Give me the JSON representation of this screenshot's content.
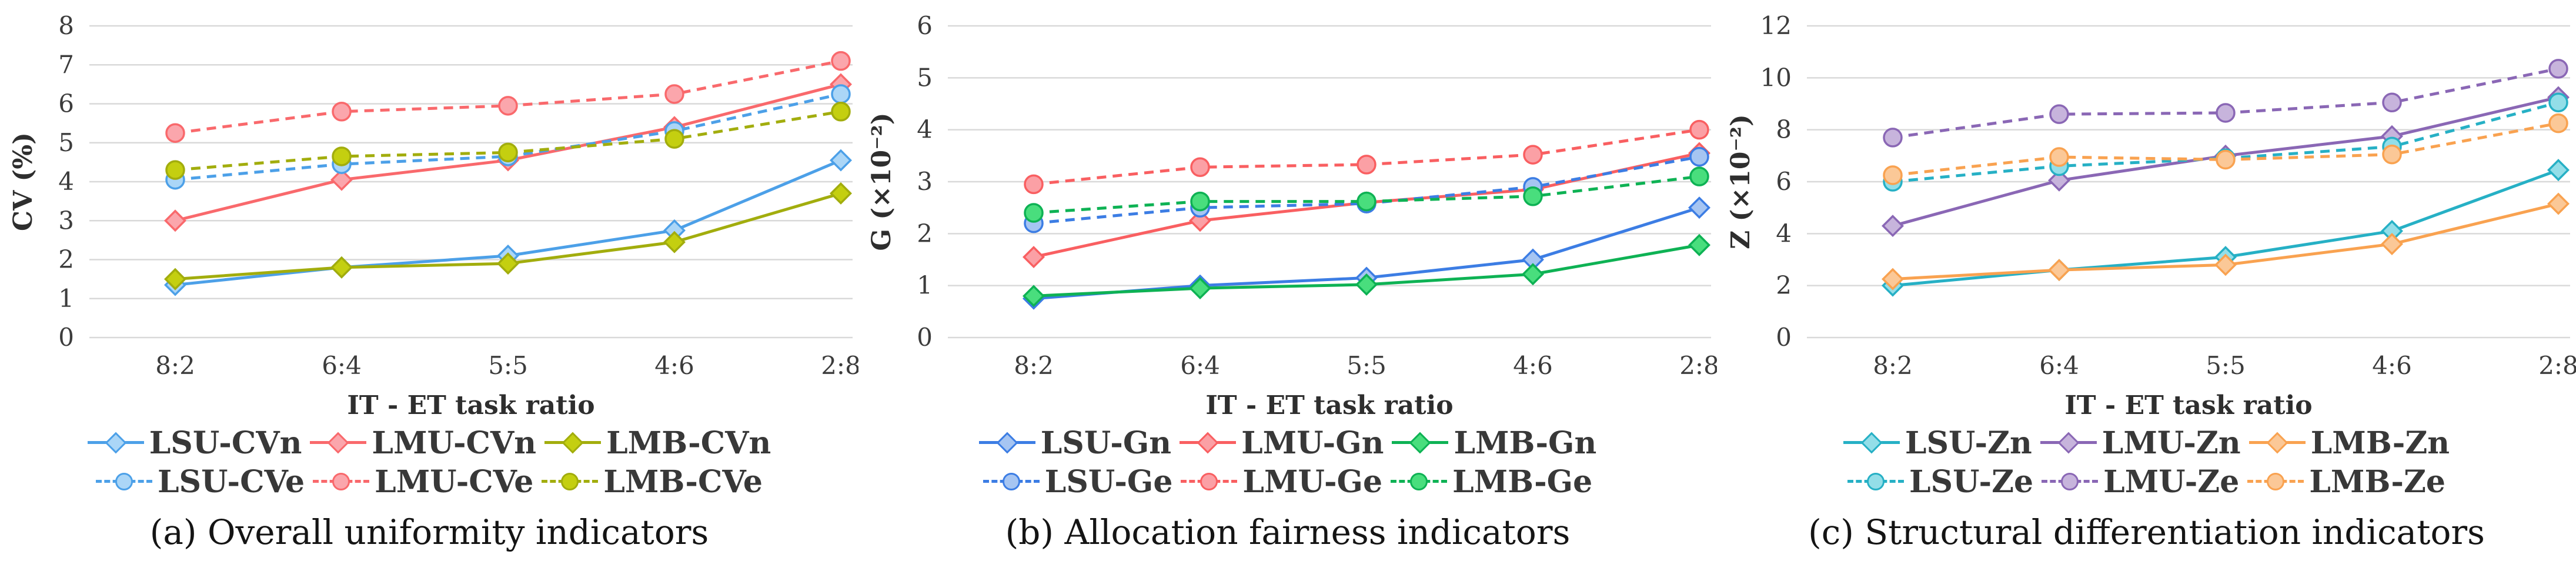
{
  "figure": {
    "x_axis_label": "IT - ET task ratio",
    "x_categories": [
      "8:2",
      "6:4",
      "5:5",
      "4:6",
      "2:8"
    ],
    "grid_color": "#D9D9D9",
    "background_color": "#FFFFFF"
  },
  "chart_data": [
    {
      "type": "line",
      "caption": "(a) Overall uniformity indicators",
      "xlabel": "IT - ET task ratio",
      "ylabel": "CV (%)",
      "ylim": [
        0,
        8
      ],
      "ytick_step": 1,
      "grid": true,
      "grid_color": "#D9D9D9",
      "legend_position": "bottom",
      "categories": [
        "8:2",
        "6:4",
        "5:5",
        "4:6",
        "2:8"
      ],
      "series": [
        {
          "name": "LSU-CVn",
          "style": "solid",
          "marker": "diamond",
          "color": "#4CA0E8",
          "fill": "#ABD6F7",
          "values": [
            1.35,
            1.8,
            2.1,
            2.75,
            4.55
          ]
        },
        {
          "name": "LMU-CVn",
          "style": "solid",
          "marker": "diamond",
          "color": "#F9696C",
          "fill": "#FBA6AC",
          "values": [
            3.0,
            4.05,
            4.55,
            5.4,
            6.5
          ]
        },
        {
          "name": "LMB-CVn",
          "style": "solid",
          "marker": "diamond",
          "color": "#A2AD0D",
          "fill": "#C4CF10",
          "values": [
            1.5,
            1.8,
            1.9,
            2.45,
            3.7
          ]
        },
        {
          "name": "LSU-CVe",
          "style": "dashed",
          "marker": "circle",
          "color": "#4CA0E8",
          "fill": "#ABD6F7",
          "values": [
            4.05,
            4.45,
            4.65,
            5.3,
            6.25
          ]
        },
        {
          "name": "LMU-CVe",
          "style": "dashed",
          "marker": "circle",
          "color": "#F9696C",
          "fill": "#FBA6AC",
          "values": [
            5.25,
            5.8,
            5.95,
            6.25,
            7.1
          ]
        },
        {
          "name": "LMB-CVe",
          "style": "dashed",
          "marker": "circle",
          "color": "#A2AD0D",
          "fill": "#C4CF10",
          "values": [
            4.3,
            4.65,
            4.75,
            5.1,
            5.8
          ]
        }
      ]
    },
    {
      "type": "line",
      "caption": "(b) Allocation fairness indicators",
      "xlabel": "IT - ET task ratio",
      "ylabel": "G (×10⁻²)",
      "ylim": [
        0,
        6
      ],
      "ytick_step": 1,
      "grid": true,
      "grid_color": "#D9D9D9",
      "legend_position": "bottom",
      "categories": [
        "8:2",
        "6:4",
        "5:5",
        "4:6",
        "2:8"
      ],
      "series": [
        {
          "name": "LSU-Gn",
          "style": "solid",
          "marker": "diamond",
          "color": "#3C7DE4",
          "fill": "#A6C5F2",
          "values": [
            0.75,
            1.0,
            1.15,
            1.5,
            2.5
          ]
        },
        {
          "name": "LMU-Gn",
          "style": "solid",
          "marker": "diamond",
          "color": "#F95F61",
          "fill": "#FBA0A5",
          "values": [
            1.55,
            2.25,
            2.6,
            2.85,
            3.55
          ]
        },
        {
          "name": "LMB-Gn",
          "style": "solid",
          "marker": "diamond",
          "color": "#0EB254",
          "fill": "#49DE7D",
          "values": [
            0.8,
            0.95,
            1.02,
            1.22,
            1.78
          ]
        },
        {
          "name": "LSU-Ge",
          "style": "dashed",
          "marker": "circle",
          "color": "#3C7DE4",
          "fill": "#A6C5F2",
          "values": [
            2.2,
            2.5,
            2.58,
            2.9,
            3.48
          ]
        },
        {
          "name": "LMU-Ge",
          "style": "dashed",
          "marker": "circle",
          "color": "#F95F61",
          "fill": "#FBA0A5",
          "values": [
            2.95,
            3.28,
            3.33,
            3.52,
            4.0
          ]
        },
        {
          "name": "LMB-Ge",
          "style": "dashed",
          "marker": "circle",
          "color": "#0EB254",
          "fill": "#49DE7D",
          "values": [
            2.4,
            2.62,
            2.62,
            2.72,
            3.1
          ]
        }
      ]
    },
    {
      "type": "line",
      "caption": "(c) Structural differentiation indicators",
      "xlabel": "IT - ET task ratio",
      "ylabel": "Z (×10⁻²)",
      "ylim": [
        0,
        12
      ],
      "ytick_step": 2,
      "grid": true,
      "grid_color": "#D9D9D9",
      "legend_position": "bottom",
      "categories": [
        "8:2",
        "6:4",
        "5:5",
        "4:6",
        "2:8"
      ],
      "series": [
        {
          "name": "LSU-Zn",
          "style": "solid",
          "marker": "diamond",
          "color": "#26B0C5",
          "fill": "#93DEE8",
          "values": [
            2.0,
            2.6,
            3.1,
            4.1,
            6.45
          ]
        },
        {
          "name": "LMU-Zn",
          "style": "solid",
          "marker": "diamond",
          "color": "#8A67B5",
          "fill": "#C7B4DC",
          "values": [
            4.3,
            6.05,
            7.0,
            7.75,
            9.25
          ]
        },
        {
          "name": "LMB-Zn",
          "style": "solid",
          "marker": "diamond",
          "color": "#F9A250",
          "fill": "#FBC897",
          "values": [
            2.25,
            2.6,
            2.8,
            3.6,
            5.15
          ]
        },
        {
          "name": "LSU-Ze",
          "style": "dashed",
          "marker": "circle",
          "color": "#26B0C5",
          "fill": "#93DEE8",
          "values": [
            6.0,
            6.6,
            6.9,
            7.35,
            9.05
          ]
        },
        {
          "name": "LMU-Ze",
          "style": "dashed",
          "marker": "circle",
          "color": "#8A67B5",
          "fill": "#C7B4DC",
          "values": [
            7.7,
            8.6,
            8.65,
            9.05,
            10.35
          ]
        },
        {
          "name": "LMB-Ze",
          "style": "dashed",
          "marker": "circle",
          "color": "#F9A250",
          "fill": "#FBC897",
          "values": [
            6.25,
            6.95,
            6.85,
            7.05,
            8.25
          ]
        }
      ]
    }
  ]
}
